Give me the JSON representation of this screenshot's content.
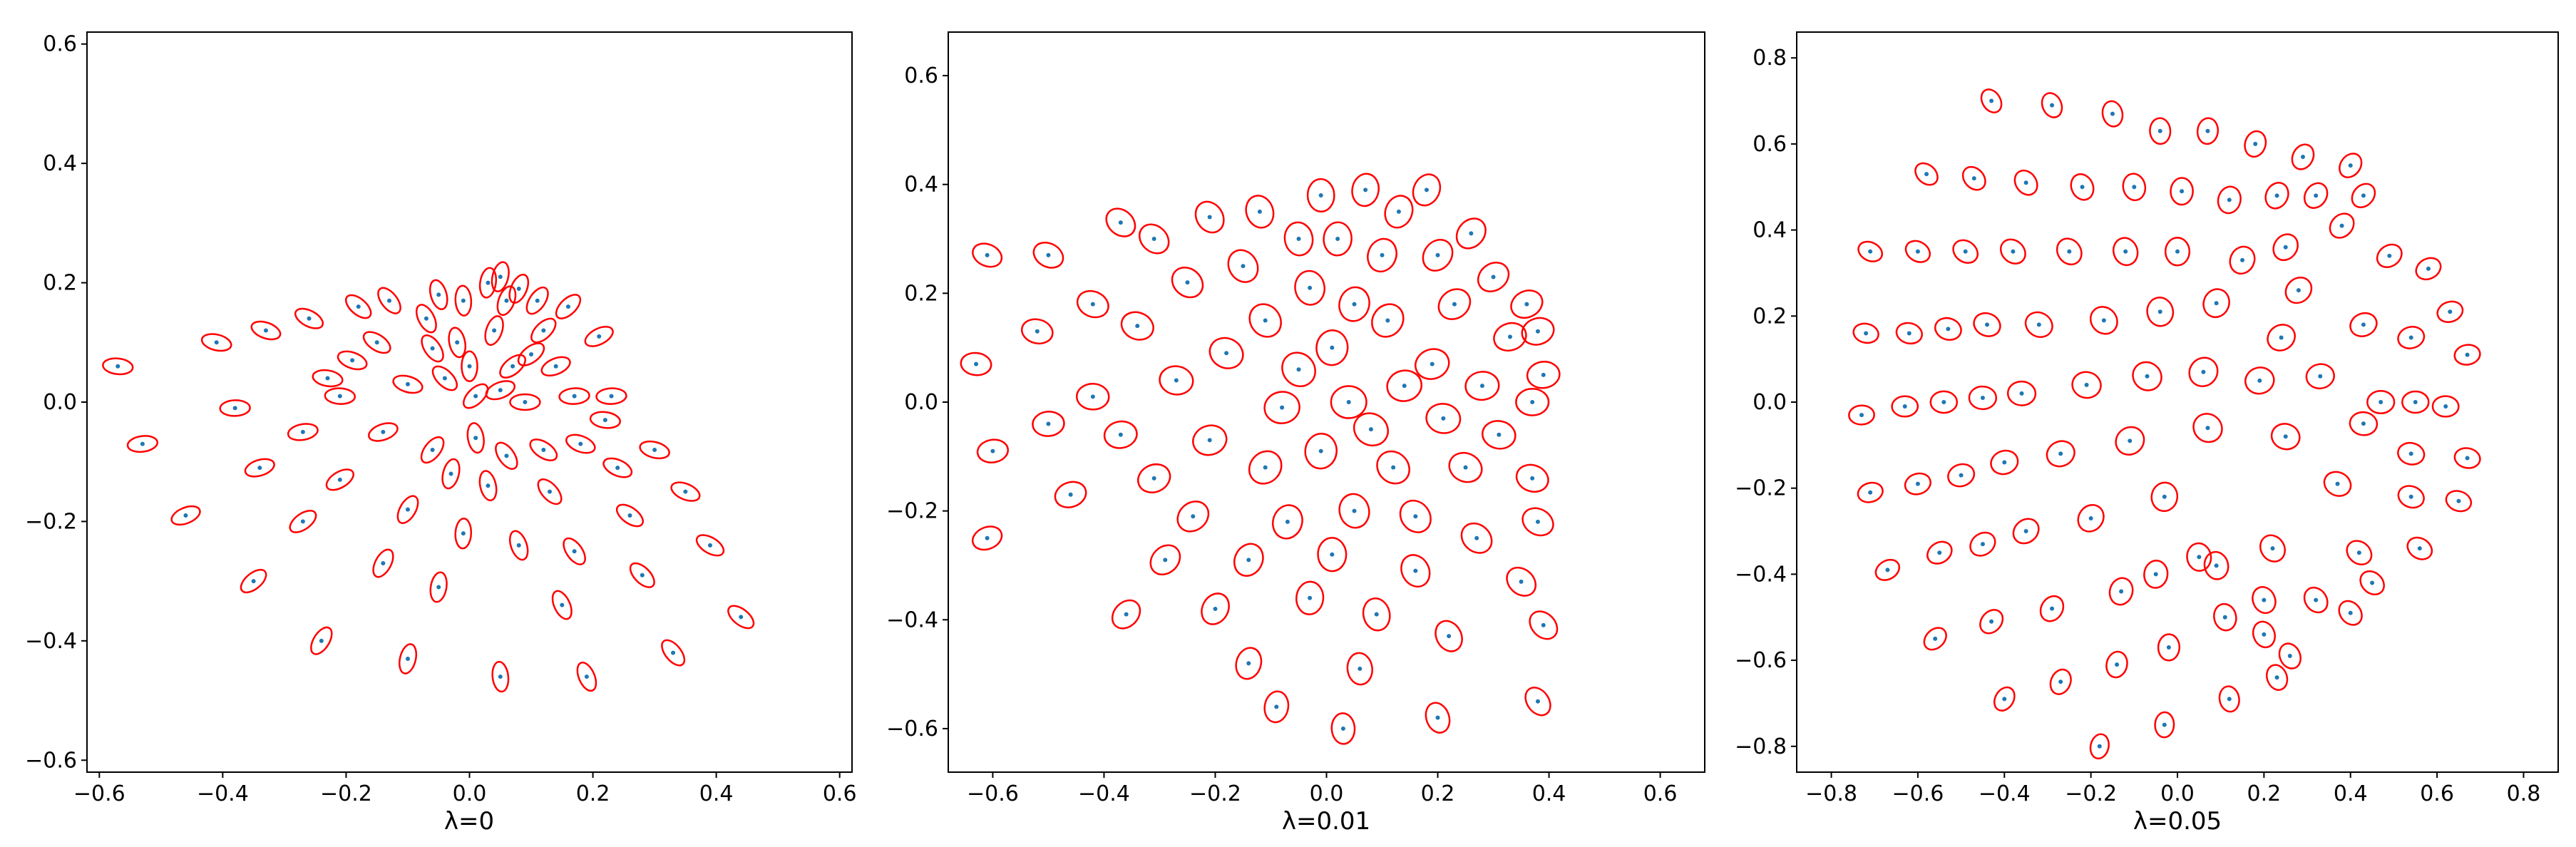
{
  "chart_data": [
    {
      "type": "scatter",
      "xlabel": "λ=0",
      "xlim": [
        -0.62,
        0.62
      ],
      "ylim": [
        -0.62,
        0.62
      ],
      "xticks": [
        "−0.6",
        "−0.4",
        "−0.2",
        "0.0",
        "0.2",
        "0.4",
        "0.6"
      ],
      "yticks": [
        "−0.6",
        "−0.4",
        "−0.2",
        "0.0",
        "0.2",
        "0.4",
        "0.6"
      ],
      "marker_color": "#1f77b4",
      "ellipse_color": "#ff0000",
      "points": [
        [
          -0.57,
          0.06
        ],
        [
          -0.53,
          -0.07
        ],
        [
          -0.46,
          -0.19
        ],
        [
          -0.41,
          0.1
        ],
        [
          -0.35,
          -0.3
        ],
        [
          -0.34,
          -0.11
        ],
        [
          -0.38,
          -0.01
        ],
        [
          -0.33,
          0.12
        ],
        [
          -0.27,
          -0.2
        ],
        [
          -0.26,
          0.14
        ],
        [
          -0.27,
          -0.05
        ],
        [
          -0.24,
          -0.4
        ],
        [
          -0.23,
          0.04
        ],
        [
          -0.19,
          0.07
        ],
        [
          -0.18,
          0.16
        ],
        [
          -0.21,
          0.01
        ],
        [
          -0.21,
          -0.13
        ],
        [
          -0.14,
          -0.27
        ],
        [
          -0.15,
          0.1
        ],
        [
          -0.14,
          -0.05
        ],
        [
          -0.13,
          0.17
        ],
        [
          -0.1,
          0.03
        ],
        [
          -0.1,
          -0.18
        ],
        [
          -0.1,
          -0.43
        ],
        [
          -0.07,
          0.14
        ],
        [
          -0.06,
          0.09
        ],
        [
          -0.06,
          -0.08
        ],
        [
          -0.05,
          -0.31
        ],
        [
          -0.05,
          0.18
        ],
        [
          -0.04,
          0.04
        ],
        [
          -0.03,
          -0.12
        ],
        [
          -0.02,
          0.1
        ],
        [
          -0.01,
          -0.22
        ],
        [
          -0.01,
          0.17
        ],
        [
          0.0,
          0.06
        ],
        [
          0.01,
          0.01
        ],
        [
          0.01,
          -0.06
        ],
        [
          0.03,
          0.2
        ],
        [
          0.03,
          -0.14
        ],
        [
          0.04,
          0.12
        ],
        [
          0.05,
          -0.46
        ],
        [
          0.05,
          0.02
        ],
        [
          0.05,
          0.21
        ],
        [
          0.06,
          -0.09
        ],
        [
          0.06,
          0.17
        ],
        [
          0.07,
          0.06
        ],
        [
          0.08,
          -0.24
        ],
        [
          0.08,
          0.19
        ],
        [
          0.09,
          0.0
        ],
        [
          0.1,
          0.08
        ],
        [
          0.11,
          0.17
        ],
        [
          0.12,
          -0.08
        ],
        [
          0.12,
          0.12
        ],
        [
          0.13,
          -0.15
        ],
        [
          0.14,
          0.06
        ],
        [
          0.15,
          -0.34
        ],
        [
          0.16,
          0.16
        ],
        [
          0.17,
          0.01
        ],
        [
          0.17,
          -0.25
        ],
        [
          0.18,
          -0.07
        ],
        [
          0.19,
          -0.46
        ],
        [
          0.21,
          0.11
        ],
        [
          0.22,
          -0.03
        ],
        [
          0.23,
          0.01
        ],
        [
          0.24,
          -0.11
        ],
        [
          0.26,
          -0.19
        ],
        [
          0.28,
          -0.29
        ],
        [
          0.3,
          -0.08
        ],
        [
          0.33,
          -0.42
        ],
        [
          0.35,
          -0.15
        ],
        [
          0.39,
          -0.24
        ],
        [
          0.44,
          -0.36
        ]
      ]
    },
    {
      "type": "scatter",
      "xlabel": "λ=0.01",
      "xlim": [
        -0.68,
        0.68
      ],
      "ylim": [
        -0.68,
        0.68
      ],
      "xticks": [
        "−0.6",
        "−0.4",
        "−0.2",
        "0.0",
        "0.2",
        "0.4",
        "0.6"
      ],
      "yticks": [
        "−0.6",
        "−0.4",
        "−0.2",
        "0.0",
        "0.2",
        "0.4",
        "0.6"
      ],
      "marker_color": "#1f77b4",
      "ellipse_color": "#ff0000",
      "points": [
        [
          -0.61,
          0.27
        ],
        [
          -0.63,
          0.07
        ],
        [
          -0.6,
          -0.09
        ],
        [
          -0.61,
          -0.25
        ],
        [
          -0.52,
          0.13
        ],
        [
          -0.5,
          0.27
        ],
        [
          -0.5,
          -0.04
        ],
        [
          -0.46,
          -0.17
        ],
        [
          -0.42,
          0.01
        ],
        [
          -0.42,
          0.18
        ],
        [
          -0.37,
          0.33
        ],
        [
          -0.37,
          -0.06
        ],
        [
          -0.36,
          -0.39
        ],
        [
          -0.34,
          0.14
        ],
        [
          -0.31,
          -0.14
        ],
        [
          -0.31,
          0.3
        ],
        [
          -0.29,
          -0.29
        ],
        [
          -0.27,
          0.04
        ],
        [
          -0.25,
          0.22
        ],
        [
          -0.24,
          -0.21
        ],
        [
          -0.21,
          -0.07
        ],
        [
          -0.21,
          0.34
        ],
        [
          -0.2,
          -0.38
        ],
        [
          -0.18,
          0.09
        ],
        [
          -0.15,
          0.25
        ],
        [
          -0.14,
          -0.29
        ],
        [
          -0.14,
          -0.48
        ],
        [
          -0.12,
          0.35
        ],
        [
          -0.11,
          -0.12
        ],
        [
          -0.11,
          0.15
        ],
        [
          -0.09,
          -0.56
        ],
        [
          -0.08,
          -0.01
        ],
        [
          -0.07,
          -0.22
        ],
        [
          -0.05,
          0.06
        ],
        [
          -0.05,
          0.3
        ],
        [
          -0.03,
          -0.36
        ],
        [
          -0.03,
          0.21
        ],
        [
          -0.01,
          -0.09
        ],
        [
          -0.01,
          0.38
        ],
        [
          0.01,
          -0.28
        ],
        [
          0.01,
          0.1
        ],
        [
          0.02,
          0.3
        ],
        [
          0.03,
          -0.6
        ],
        [
          0.04,
          0.0
        ],
        [
          0.05,
          -0.2
        ],
        [
          0.05,
          0.18
        ],
        [
          0.06,
          -0.49
        ],
        [
          0.07,
          0.39
        ],
        [
          0.08,
          -0.05
        ],
        [
          0.09,
          -0.39
        ],
        [
          0.1,
          0.27
        ],
        [
          0.11,
          0.15
        ],
        [
          0.12,
          -0.12
        ],
        [
          0.13,
          0.35
        ],
        [
          0.14,
          0.03
        ],
        [
          0.16,
          -0.21
        ],
        [
          0.16,
          -0.31
        ],
        [
          0.18,
          0.39
        ],
        [
          0.19,
          0.07
        ],
        [
          0.2,
          -0.58
        ],
        [
          0.2,
          0.27
        ],
        [
          0.21,
          -0.03
        ],
        [
          0.22,
          -0.43
        ],
        [
          0.23,
          0.18
        ],
        [
          0.25,
          -0.12
        ],
        [
          0.26,
          0.31
        ],
        [
          0.27,
          -0.25
        ],
        [
          0.28,
          0.03
        ],
        [
          0.3,
          0.23
        ],
        [
          0.31,
          -0.06
        ],
        [
          0.33,
          0.12
        ],
        [
          0.35,
          -0.33
        ],
        [
          0.36,
          0.18
        ],
        [
          0.37,
          -0.14
        ],
        [
          0.37,
          0.0
        ],
        [
          0.38,
          -0.55
        ],
        [
          0.38,
          -0.22
        ],
        [
          0.39,
          -0.41
        ],
        [
          0.39,
          0.05
        ],
        [
          0.38,
          0.13
        ]
      ]
    },
    {
      "type": "scatter",
      "xlabel": "λ=0.05",
      "xlim": [
        -0.88,
        0.88
      ],
      "ylim": [
        -0.86,
        0.86
      ],
      "xticks": [
        "−0.8",
        "−0.6",
        "−0.4",
        "−0.2",
        "0.0",
        "0.2",
        "0.4",
        "0.6",
        "0.8"
      ],
      "yticks": [
        "−0.8",
        "−0.6",
        "−0.4",
        "−0.2",
        "0.0",
        "0.2",
        "0.4",
        "0.6",
        "0.8"
      ],
      "marker_color": "#1f77b4",
      "ellipse_color": "#ff0000",
      "points": [
        [
          -0.43,
          0.7
        ],
        [
          -0.29,
          0.69
        ],
        [
          -0.15,
          0.67
        ],
        [
          -0.04,
          0.63
        ],
        [
          0.07,
          0.63
        ],
        [
          0.18,
          0.6
        ],
        [
          0.29,
          0.57
        ],
        [
          0.4,
          0.55
        ],
        [
          -0.58,
          0.53
        ],
        [
          -0.47,
          0.52
        ],
        [
          -0.35,
          0.51
        ],
        [
          -0.22,
          0.5
        ],
        [
          -0.1,
          0.5
        ],
        [
          0.01,
          0.49
        ],
        [
          0.12,
          0.47
        ],
        [
          0.23,
          0.48
        ],
        [
          0.32,
          0.48
        ],
        [
          0.43,
          0.48
        ],
        [
          -0.71,
          0.35
        ],
        [
          -0.6,
          0.35
        ],
        [
          -0.49,
          0.35
        ],
        [
          -0.38,
          0.35
        ],
        [
          -0.25,
          0.35
        ],
        [
          -0.12,
          0.35
        ],
        [
          0.0,
          0.35
        ],
        [
          0.15,
          0.33
        ],
        [
          0.25,
          0.36
        ],
        [
          0.38,
          0.41
        ],
        [
          0.49,
          0.34
        ],
        [
          0.58,
          0.31
        ],
        [
          -0.72,
          0.16
        ],
        [
          -0.62,
          0.16
        ],
        [
          -0.53,
          0.17
        ],
        [
          -0.44,
          0.18
        ],
        [
          -0.32,
          0.18
        ],
        [
          -0.17,
          0.19
        ],
        [
          -0.04,
          0.21
        ],
        [
          0.09,
          0.23
        ],
        [
          0.24,
          0.15
        ],
        [
          0.28,
          0.26
        ],
        [
          0.43,
          0.18
        ],
        [
          0.54,
          0.15
        ],
        [
          0.63,
          0.21
        ],
        [
          -0.73,
          -0.03
        ],
        [
          -0.63,
          -0.01
        ],
        [
          -0.54,
          0.0
        ],
        [
          -0.45,
          0.01
        ],
        [
          -0.36,
          0.02
        ],
        [
          -0.21,
          0.04
        ],
        [
          -0.07,
          0.06
        ],
        [
          0.06,
          0.07
        ],
        [
          0.19,
          0.05
        ],
        [
          0.33,
          0.06
        ],
        [
          0.47,
          0.0
        ],
        [
          0.55,
          0.0
        ],
        [
          0.62,
          -0.01
        ],
        [
          0.67,
          0.11
        ],
        [
          -0.71,
          -0.21
        ],
        [
          -0.6,
          -0.19
        ],
        [
          -0.5,
          -0.17
        ],
        [
          -0.4,
          -0.14
        ],
        [
          -0.27,
          -0.12
        ],
        [
          -0.11,
          -0.09
        ],
        [
          0.07,
          -0.06
        ],
        [
          0.25,
          -0.08
        ],
        [
          0.43,
          -0.05
        ],
        [
          0.54,
          -0.12
        ],
        [
          0.67,
          -0.13
        ],
        [
          -0.67,
          -0.39
        ],
        [
          -0.55,
          -0.35
        ],
        [
          -0.45,
          -0.33
        ],
        [
          -0.35,
          -0.3
        ],
        [
          -0.2,
          -0.27
        ],
        [
          -0.03,
          -0.22
        ],
        [
          0.05,
          -0.36
        ],
        [
          0.22,
          -0.34
        ],
        [
          0.37,
          -0.19
        ],
        [
          0.42,
          -0.35
        ],
        [
          0.54,
          -0.22
        ],
        [
          0.65,
          -0.23
        ],
        [
          -0.56,
          -0.55
        ],
        [
          -0.43,
          -0.51
        ],
        [
          -0.29,
          -0.48
        ],
        [
          -0.13,
          -0.44
        ],
        [
          -0.05,
          -0.4
        ],
        [
          0.09,
          -0.38
        ],
        [
          0.2,
          -0.46
        ],
        [
          0.32,
          -0.46
        ],
        [
          0.45,
          -0.42
        ],
        [
          0.56,
          -0.34
        ],
        [
          -0.4,
          -0.69
        ],
        [
          -0.27,
          -0.65
        ],
        [
          -0.14,
          -0.61
        ],
        [
          -0.02,
          -0.57
        ],
        [
          0.11,
          -0.5
        ],
        [
          0.2,
          -0.54
        ],
        [
          0.26,
          -0.59
        ],
        [
          -0.18,
          -0.8
        ],
        [
          -0.03,
          -0.75
        ],
        [
          0.12,
          -0.69
        ],
        [
          0.23,
          -0.64
        ],
        [
          0.4,
          -0.49
        ]
      ]
    }
  ]
}
